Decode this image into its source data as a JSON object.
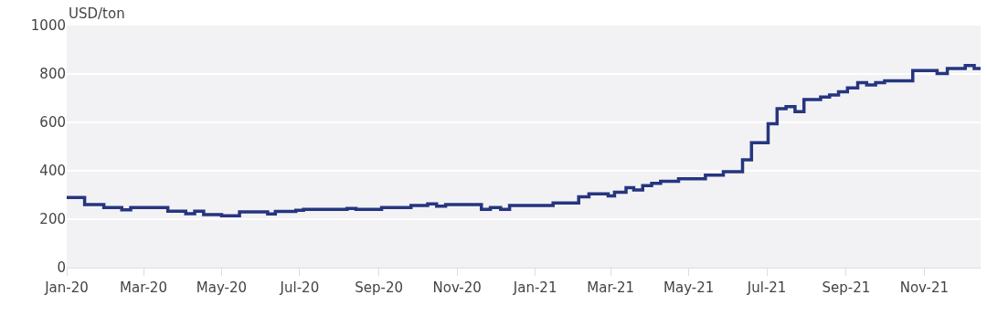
{
  "chart_data": {
    "type": "step",
    "ylabel": "USD/ton",
    "x": [
      "2020-01-01",
      "2020-01-15",
      "2020-01-30",
      "2020-02-13",
      "2020-02-20",
      "2020-03-20",
      "2020-04-03",
      "2020-04-10",
      "2020-04-17",
      "2020-05-01",
      "2020-05-15",
      "2020-06-06",
      "2020-06-12",
      "2020-06-28",
      "2020-07-04",
      "2020-08-07",
      "2020-08-14",
      "2020-09-03",
      "2020-09-26",
      "2020-10-09",
      "2020-10-16",
      "2020-10-23",
      "2020-11-20",
      "2020-11-27",
      "2020-12-05",
      "2020-12-12",
      "2021-01-15",
      "2021-02-04",
      "2021-02-12",
      "2021-02-27",
      "2021-03-04",
      "2021-03-13",
      "2021-03-19",
      "2021-03-26",
      "2021-04-02",
      "2021-04-09",
      "2021-04-23",
      "2021-05-14",
      "2021-05-28",
      "2021-06-12",
      "2021-06-19",
      "2021-07-02",
      "2021-07-09",
      "2021-07-16",
      "2021-07-23",
      "2021-07-30",
      "2021-08-12",
      "2021-08-19",
      "2021-08-26",
      "2021-09-02",
      "2021-09-10",
      "2021-09-17",
      "2021-09-24",
      "2021-10-01",
      "2021-10-23",
      "2021-11-11",
      "2021-11-19",
      "2021-12-03",
      "2021-12-10",
      "2021-12-15"
    ],
    "series": [
      {
        "color": "#26357f",
        "values": [
          290,
          260,
          248,
          239,
          248,
          233,
          223,
          233,
          219,
          214,
          230,
          222,
          232,
          237,
          241,
          244,
          241,
          248,
          257,
          263,
          254,
          260,
          241,
          248,
          241,
          257,
          267,
          292,
          305,
          296,
          311,
          330,
          321,
          339,
          348,
          357,
          367,
          382,
          396,
          445,
          516,
          594,
          657,
          665,
          644,
          694,
          705,
          713,
          726,
          742,
          764,
          755,
          764,
          772,
          814,
          802,
          823,
          835,
          823,
          823
        ]
      }
    ],
    "xlim": [
      "2020-01-01",
      "2021-12-15"
    ],
    "xticks": [
      {
        "value": "2020-01-01",
        "label": "Jan-20"
      },
      {
        "value": "2020-03-01",
        "label": "Mar-20"
      },
      {
        "value": "2020-05-01",
        "label": "May-20"
      },
      {
        "value": "2020-07-01",
        "label": "Jul-20"
      },
      {
        "value": "2020-09-01",
        "label": "Sep-20"
      },
      {
        "value": "2020-11-01",
        "label": "Nov-20"
      },
      {
        "value": "2021-01-01",
        "label": "Jan-21"
      },
      {
        "value": "2021-03-01",
        "label": "Mar-21"
      },
      {
        "value": "2021-05-01",
        "label": "May-21"
      },
      {
        "value": "2021-07-01",
        "label": "Jul-21"
      },
      {
        "value": "2021-09-01",
        "label": "Sep-21"
      },
      {
        "value": "2021-11-01",
        "label": "Nov-21"
      }
    ],
    "ylim": [
      0,
      1000
    ],
    "yticks": [
      0,
      200,
      400,
      600,
      800,
      1000
    ],
    "grid": "y",
    "marker": "none",
    "line_style": "solid"
  }
}
